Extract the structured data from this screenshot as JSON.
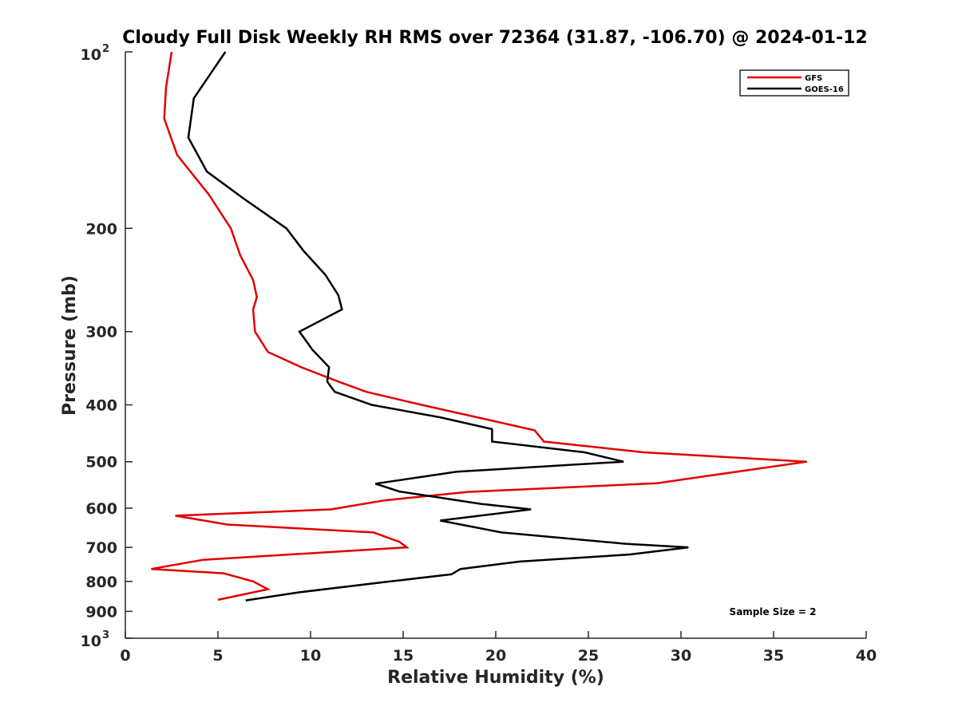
{
  "chart_data": {
    "type": "line",
    "title": "Cloudy Full Disk Weekly RH RMS over 72364 (31.87, -106.70) @ 2024-01-12",
    "xlabel": "Relative Humidity (%)",
    "ylabel": "Pressure (mb)",
    "xlim": [
      0,
      40
    ],
    "ylim": [
      100,
      1000
    ],
    "yscale": "log",
    "y_reversed": true,
    "grid": false,
    "legend_position": "top-right",
    "x_ticks": [
      "0",
      "5",
      "10",
      "15",
      "20",
      "25",
      "30",
      "35",
      "40"
    ],
    "y_ticks": [
      {
        "value": 100,
        "base": "10",
        "exp": "2"
      },
      {
        "value": 200,
        "label": "200"
      },
      {
        "value": 300,
        "label": "300"
      },
      {
        "value": 400,
        "label": "400"
      },
      {
        "value": 500,
        "label": "500"
      },
      {
        "value": 600,
        "label": "600"
      },
      {
        "value": 700,
        "label": "700"
      },
      {
        "value": 800,
        "label": "800"
      },
      {
        "value": 900,
        "label": "900"
      },
      {
        "value": 1000,
        "base": "10",
        "exp": "3"
      }
    ],
    "annotation": "Sample Size = 2",
    "series": [
      {
        "name": "GFS",
        "color": "#e00000",
        "points": [
          [
            2.5,
            100
          ],
          [
            2.2,
            115
          ],
          [
            2.1,
            130
          ],
          [
            2.8,
            150
          ],
          [
            4.5,
            175
          ],
          [
            5.7,
            200
          ],
          [
            6.2,
            222
          ],
          [
            6.9,
            245
          ],
          [
            7.1,
            262
          ],
          [
            6.9,
            275
          ],
          [
            7.0,
            300
          ],
          [
            7.7,
            325
          ],
          [
            9.5,
            345
          ],
          [
            11.5,
            365
          ],
          [
            13.0,
            380
          ],
          [
            16.0,
            400
          ],
          [
            19.0,
            420
          ],
          [
            22.1,
            442
          ],
          [
            22.6,
            462
          ],
          [
            28.0,
            482
          ],
          [
            36.8,
            500
          ],
          [
            28.7,
            544
          ],
          [
            18.5,
            563
          ],
          [
            14.0,
            582
          ],
          [
            11.1,
            603
          ],
          [
            2.7,
            618
          ],
          [
            5.5,
            640
          ],
          [
            13.4,
            660
          ],
          [
            14.8,
            685
          ],
          [
            15.2,
            700
          ],
          [
            4.2,
            735
          ],
          [
            1.4,
            762
          ],
          [
            5.3,
            775
          ],
          [
            6.9,
            800
          ],
          [
            7.7,
            825
          ],
          [
            5.0,
            860
          ]
        ]
      },
      {
        "name": "GOES-16",
        "color": "#000000",
        "points": [
          [
            5.4,
            100
          ],
          [
            3.7,
            120
          ],
          [
            3.4,
            140
          ],
          [
            4.4,
            160
          ],
          [
            6.4,
            178
          ],
          [
            8.7,
            200
          ],
          [
            9.6,
            218
          ],
          [
            10.8,
            240
          ],
          [
            11.5,
            260
          ],
          [
            11.7,
            275
          ],
          [
            9.4,
            300
          ],
          [
            10.1,
            322
          ],
          [
            11.0,
            345
          ],
          [
            10.9,
            365
          ],
          [
            11.3,
            380
          ],
          [
            13.3,
            400
          ],
          [
            17.0,
            420
          ],
          [
            19.8,
            440
          ],
          [
            19.8,
            462
          ],
          [
            24.8,
            482
          ],
          [
            26.9,
            500
          ],
          [
            17.9,
            520
          ],
          [
            13.5,
            545
          ],
          [
            14.8,
            562
          ],
          [
            19.2,
            590
          ],
          [
            21.9,
            603
          ],
          [
            17.0,
            630
          ],
          [
            20.3,
            660
          ],
          [
            27.0,
            690
          ],
          [
            30.4,
            700
          ],
          [
            27.2,
            720
          ],
          [
            21.3,
            740
          ],
          [
            18.1,
            762
          ],
          [
            17.6,
            778
          ],
          [
            14.3,
            800
          ],
          [
            9.4,
            835
          ],
          [
            6.5,
            862
          ]
        ]
      }
    ]
  }
}
